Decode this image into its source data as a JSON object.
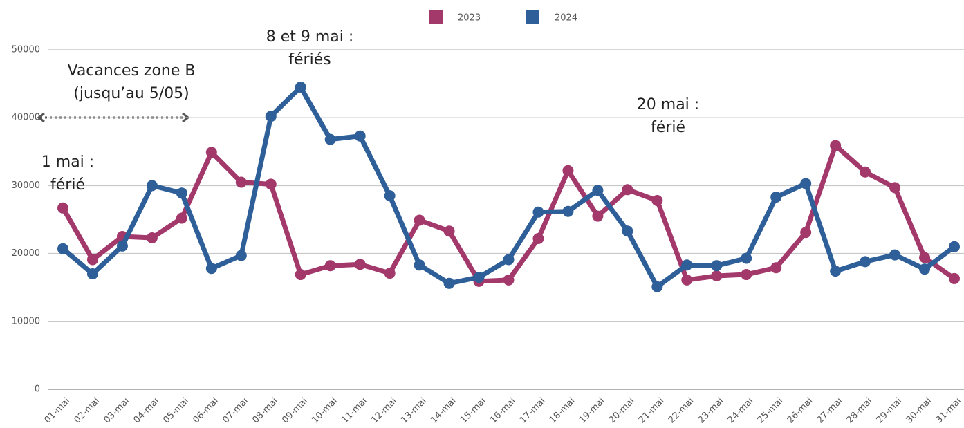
{
  "chart_data": {
    "type": "line",
    "categories": [
      "01-mai",
      "02-mai",
      "03-mai",
      "04-mai",
      "05-mai",
      "06-mai",
      "07-mai",
      "08-mai",
      "09-mai",
      "10-mai",
      "11-mai",
      "12-mai",
      "13-mai",
      "14-mai",
      "15-mai",
      "16-mai",
      "17-mai",
      "18-mai",
      "19-mai",
      "20-mai",
      "21-mai",
      "22-mai",
      "23-mai",
      "24-mai",
      "25-mai",
      "26-mai",
      "27-mai",
      "28-mai",
      "29-mai",
      "30-mai",
      "31-mai"
    ],
    "series": [
      {
        "name": "2023",
        "color": "#a3386b",
        "values": [
          26700,
          19100,
          22500,
          22300,
          25200,
          34900,
          30500,
          30200,
          16900,
          18200,
          18400,
          17100,
          24900,
          23300,
          15900,
          16100,
          22200,
          32200,
          25500,
          29400,
          27800,
          16100,
          16700,
          16900,
          17900,
          23100,
          35900,
          32000,
          29700,
          19400,
          16300
        ]
      },
      {
        "name": "2024",
        "color": "#2e5f98",
        "values": [
          20700,
          17000,
          21100,
          30000,
          28900,
          17800,
          19700,
          40200,
          44500,
          36800,
          37300,
          28500,
          18300,
          15600,
          16500,
          19100,
          26100,
          26200,
          29300,
          23300,
          15100,
          18300,
          18200,
          19300,
          28300,
          30300,
          17400,
          18800,
          19800,
          17700,
          21000
        ]
      }
    ],
    "ylim": [
      0,
      50000
    ],
    "yticks": [
      0,
      10000,
      20000,
      30000,
      40000,
      50000
    ],
    "grid": true,
    "legend": "top",
    "annotations": [
      {
        "lines": [
          "Vacances zone B",
          "(jusqu’au 5/05)"
        ]
      },
      {
        "lines": [
          "8 et 9 mai :",
          "fériés"
        ]
      },
      {
        "lines": [
          "20 mai :",
          "férié"
        ]
      },
      {
        "lines": [
          "1 mai :",
          "férié"
        ]
      }
    ]
  }
}
